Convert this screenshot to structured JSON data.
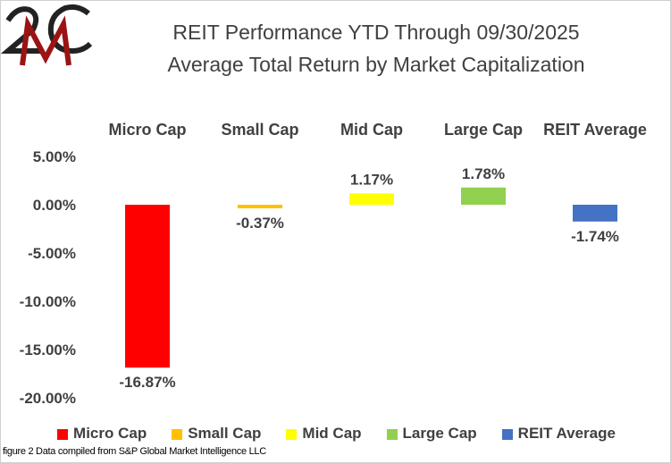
{
  "logo": {
    "text": "2MC"
  },
  "chart_data": {
    "type": "bar",
    "title": "REIT Performance YTD Through 09/30/2025",
    "subtitle": "Average Total Return by Market Capitalization",
    "categories": [
      "Micro Cap",
      "Small Cap",
      "Mid Cap",
      "Large Cap",
      "REIT Average"
    ],
    "values": [
      -16.87,
      -0.37,
      1.17,
      1.78,
      -1.74
    ],
    "data_labels": [
      "-16.87%",
      "-0.37%",
      "1.17%",
      "1.78%",
      "-1.74%"
    ],
    "colors": [
      "#ff0000",
      "#ffc000",
      "#ffff00",
      "#92d050",
      "#4472c4"
    ],
    "yticks": [
      "5.00%",
      "0.00%",
      "-5.00%",
      "-10.00%",
      "-15.00%",
      "-20.00%"
    ],
    "ytick_values": [
      5,
      0,
      -5,
      -10,
      -15,
      -20
    ],
    "ylim": [
      -20,
      5
    ],
    "grid": false,
    "legend": "bottom"
  },
  "footer": {
    "source": "figure 2 Data compiled from S&P Global Market Intelligence LLC"
  }
}
